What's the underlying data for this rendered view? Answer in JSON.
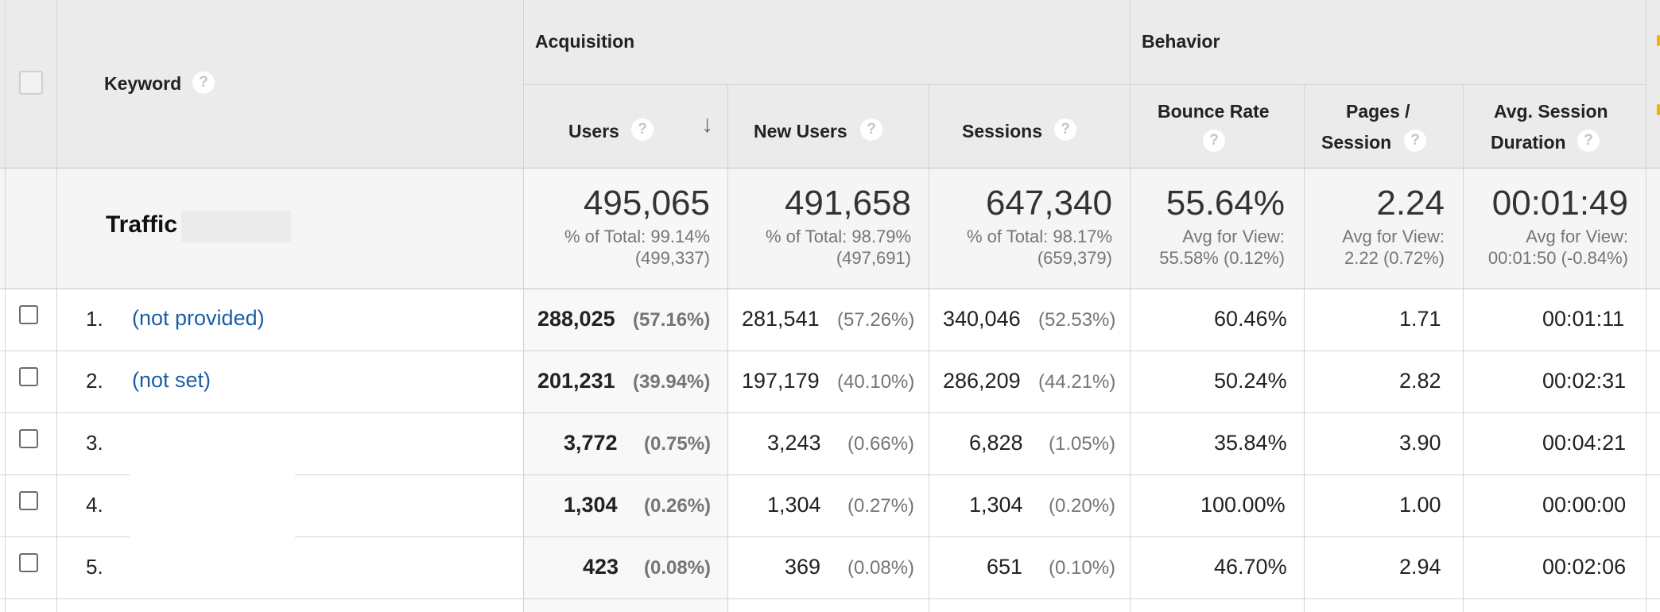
{
  "header": {
    "keyword_label": "Keyword",
    "acquisition_label": "Acquisition",
    "behavior_label": "Behavior",
    "columns": {
      "users": "Users",
      "new_users": "New Users",
      "sessions": "Sessions",
      "bounce_rate": "Bounce Rate",
      "pages_session_1": "Pages /",
      "pages_session_2": "Session",
      "avg_dur_1": "Avg. Session",
      "avg_dur_2": "Duration"
    },
    "help_glyph": "?",
    "sort_glyph": "↓"
  },
  "summary": {
    "label": "Traffic",
    "users": {
      "value": "495,065",
      "line1": "% of Total: 99.14%",
      "line2": "(499,337)"
    },
    "new_users": {
      "value": "491,658",
      "line1": "% of Total: 98.79%",
      "line2": "(497,691)"
    },
    "sessions": {
      "value": "647,340",
      "line1": "% of Total: 98.17%",
      "line2": "(659,379)"
    },
    "bounce_rate": {
      "value": "55.64%",
      "line1": "Avg for View:",
      "line2": "55.58% (0.12%)"
    },
    "pages_session": {
      "value": "2.24",
      "line1": "Avg for View:",
      "line2": "2.22 (0.72%)"
    },
    "avg_duration": {
      "value": "00:01:49",
      "line1": "Avg for View:",
      "line2": "00:01:50 (-0.84%)"
    }
  },
  "rows": [
    {
      "num": "1.",
      "keyword": "(not provided)",
      "users": "288,025",
      "users_pct": "(57.16%)",
      "new_users": "281,541",
      "new_users_pct": "(57.26%)",
      "sessions": "340,046",
      "sessions_pct": "(52.53%)",
      "bounce": "60.46%",
      "pages": "1.71",
      "duration": "00:01:11"
    },
    {
      "num": "2.",
      "keyword": "(not set)",
      "users": "201,231",
      "users_pct": "(39.94%)",
      "new_users": "197,179",
      "new_users_pct": "(40.10%)",
      "sessions": "286,209",
      "sessions_pct": "(44.21%)",
      "bounce": "50.24%",
      "pages": "2.82",
      "duration": "00:02:31"
    },
    {
      "num": "3.",
      "keyword": "",
      "users": "3,772",
      "users_pct": "(0.75%)",
      "new_users": "3,243",
      "new_users_pct": "(0.66%)",
      "sessions": "6,828",
      "sessions_pct": "(1.05%)",
      "bounce": "35.84%",
      "pages": "3.90",
      "duration": "00:04:21"
    },
    {
      "num": "4.",
      "keyword": "",
      "users": "1,304",
      "users_pct": "(0.26%)",
      "new_users": "1,304",
      "new_users_pct": "(0.27%)",
      "sessions": "1,304",
      "sessions_pct": "(0.20%)",
      "bounce": "100.00%",
      "pages": "1.00",
      "duration": "00:00:00"
    },
    {
      "num": "5.",
      "keyword": "",
      "users": "423",
      "users_pct": "(0.08%)",
      "new_users": "369",
      "new_users_pct": "(0.08%)",
      "sessions": "651",
      "sessions_pct": "(0.10%)",
      "bounce": "46.70%",
      "pages": "2.94",
      "duration": "00:02:06"
    }
  ]
}
